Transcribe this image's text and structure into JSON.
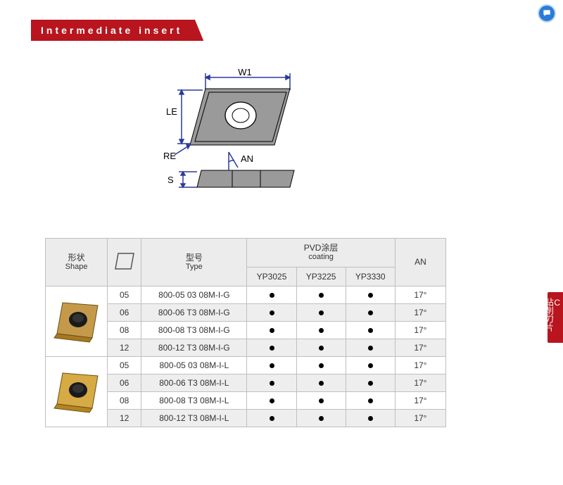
{
  "title": "Intermediate  insert",
  "diagram": {
    "labels": {
      "w1": "W1",
      "le": "LE",
      "re": "RE",
      "an": "AN",
      "s": "S"
    },
    "colors": {
      "line": "#2b3a9a",
      "fill": "#9a9a9a"
    },
    "w1": 120,
    "le": 95,
    "hole_d": 38,
    "s": 22
  },
  "headers": {
    "shape_cn": "形状",
    "shape_en": "Shape",
    "type_cn": "型号",
    "type_en": "Type",
    "coat_cn": "PVD涂层",
    "coat_en": "coating",
    "an": "AN",
    "coat_cols": [
      "YP3025",
      "YP3225",
      "YP3330"
    ]
  },
  "rows": [
    {
      "size": "05",
      "type": "800-05 03 08M-I-G",
      "c": [
        true,
        true,
        true
      ],
      "an": "17°",
      "alt": false
    },
    {
      "size": "06",
      "type": "800-06 T3 08M-I-G",
      "c": [
        true,
        true,
        true
      ],
      "an": "17°",
      "alt": true
    },
    {
      "size": "08",
      "type": "800-08 T3 08M-I-G",
      "c": [
        true,
        true,
        true
      ],
      "an": "17°",
      "alt": false
    },
    {
      "size": "12",
      "type": "800-12 T3 08M-I-G",
      "c": [
        true,
        true,
        true
      ],
      "an": "17°",
      "alt": true
    },
    {
      "size": "05",
      "type": "800-05 03 08M-I-L",
      "c": [
        true,
        true,
        true
      ],
      "an": "17°",
      "alt": false
    },
    {
      "size": "06",
      "type": "800-06 T3 08M-I-L",
      "c": [
        true,
        true,
        true
      ],
      "an": "17°",
      "alt": true
    },
    {
      "size": "08",
      "type": "800-08 T3 08M-I-L",
      "c": [
        true,
        true,
        true
      ],
      "an": "17°",
      "alt": false
    },
    {
      "size": "12",
      "type": "800-12 T3 08M-I-L",
      "c": [
        true,
        true,
        true
      ],
      "an": "17°",
      "alt": true
    }
  ],
  "shape_groups": [
    {
      "span": 4,
      "fill1": "#c49a4a",
      "fill2": "#a67820",
      "hole": "#1a1a1a"
    },
    {
      "span": 4,
      "fill1": "#d6aa44",
      "fill2": "#b58420",
      "hole": "#1a1a1a"
    }
  ],
  "side_tab": {
    "prefix": "C",
    "text": "钻削刀片"
  },
  "col_widths": {
    "shape": 88,
    "size": 48,
    "type": 150,
    "coat": 70,
    "an": 72
  }
}
